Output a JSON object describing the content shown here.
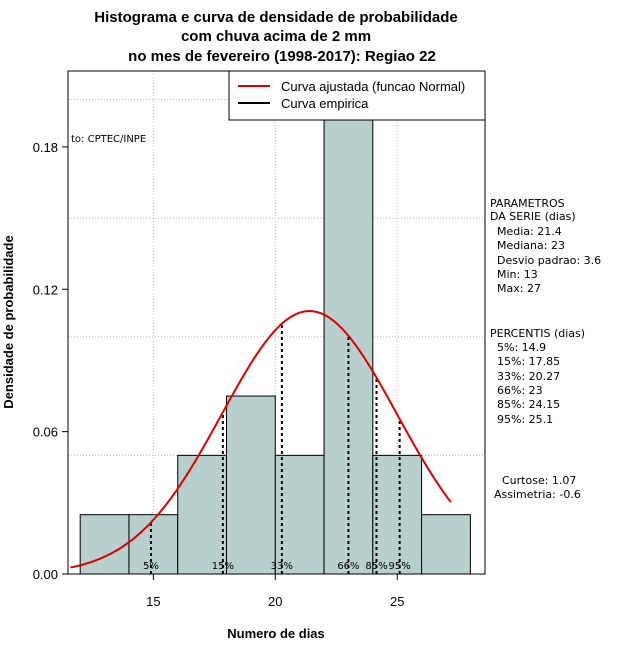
{
  "chart_data": {
    "type": "bar",
    "title": [
      "Histograma e curva de densidade de probabilidade",
      "com chuva acima de 2 mm",
      "no mes de fevereiro (1998-2017): Regiao 22"
    ],
    "xlabel": "Numero de dias",
    "ylabel": "Densidade de probabilidade",
    "xlim": [
      11.5,
      28.6
    ],
    "ylim": [
      0,
      0.212
    ],
    "x_ticks": [
      15,
      20,
      25
    ],
    "y_ticks": [
      0.0,
      0.06,
      0.12,
      0.18
    ],
    "y_tick_labels": [
      "0.00",
      "0.06",
      "0.12",
      "0.18"
    ],
    "grid": true,
    "histogram": {
      "bin_edges": [
        12,
        14,
        16,
        18,
        20,
        22,
        24,
        26,
        28
      ],
      "densities": [
        0.025,
        0.025,
        0.05,
        0.075,
        0.05,
        0.2,
        0.05,
        0.025
      ],
      "fill_color": "#b7cfcd"
    },
    "series": [
      {
        "name": "Curva ajustada (funcao Normal)",
        "type": "line",
        "color": "#dd0000",
        "mean": 21.4,
        "sd": 3.6,
        "x_range": [
          11.6,
          27.2
        ]
      },
      {
        "name": "Curva empirica",
        "type": "line",
        "color": "#000000"
      }
    ],
    "legend_position": "top-right",
    "percentile_markers": [
      {
        "label": "5%",
        "x": 14.9
      },
      {
        "label": "15%",
        "x": 17.85
      },
      {
        "label": "33%",
        "x": 20.27
      },
      {
        "label": "66%",
        "x": 23
      },
      {
        "label": "85%",
        "x": 24.15
      },
      {
        "label": "95%",
        "x": 25.1
      }
    ],
    "source_note": "to: CPTEC/INPE"
  },
  "side_panel": {
    "params_title_1": "PARAMETROS",
    "params_title_2": "DA SERIE (dias)",
    "media": "Media: 21.4",
    "mediana": "Mediana: 23",
    "desvio": "Desvio padrao: 3.6",
    "min": "Min: 13",
    "max": "Max: 27",
    "percentis_title": "PERCENTIS (dias)",
    "p5": "5%: 14.9",
    "p15": "15%: 17.85",
    "p33": "33%: 20.27",
    "p66": "66%: 23",
    "p85": "85%: 24.15",
    "p95": "95%: 25.1",
    "curtose": "Curtose: 1.07",
    "assimetria": "Assimetria: -0.6"
  }
}
